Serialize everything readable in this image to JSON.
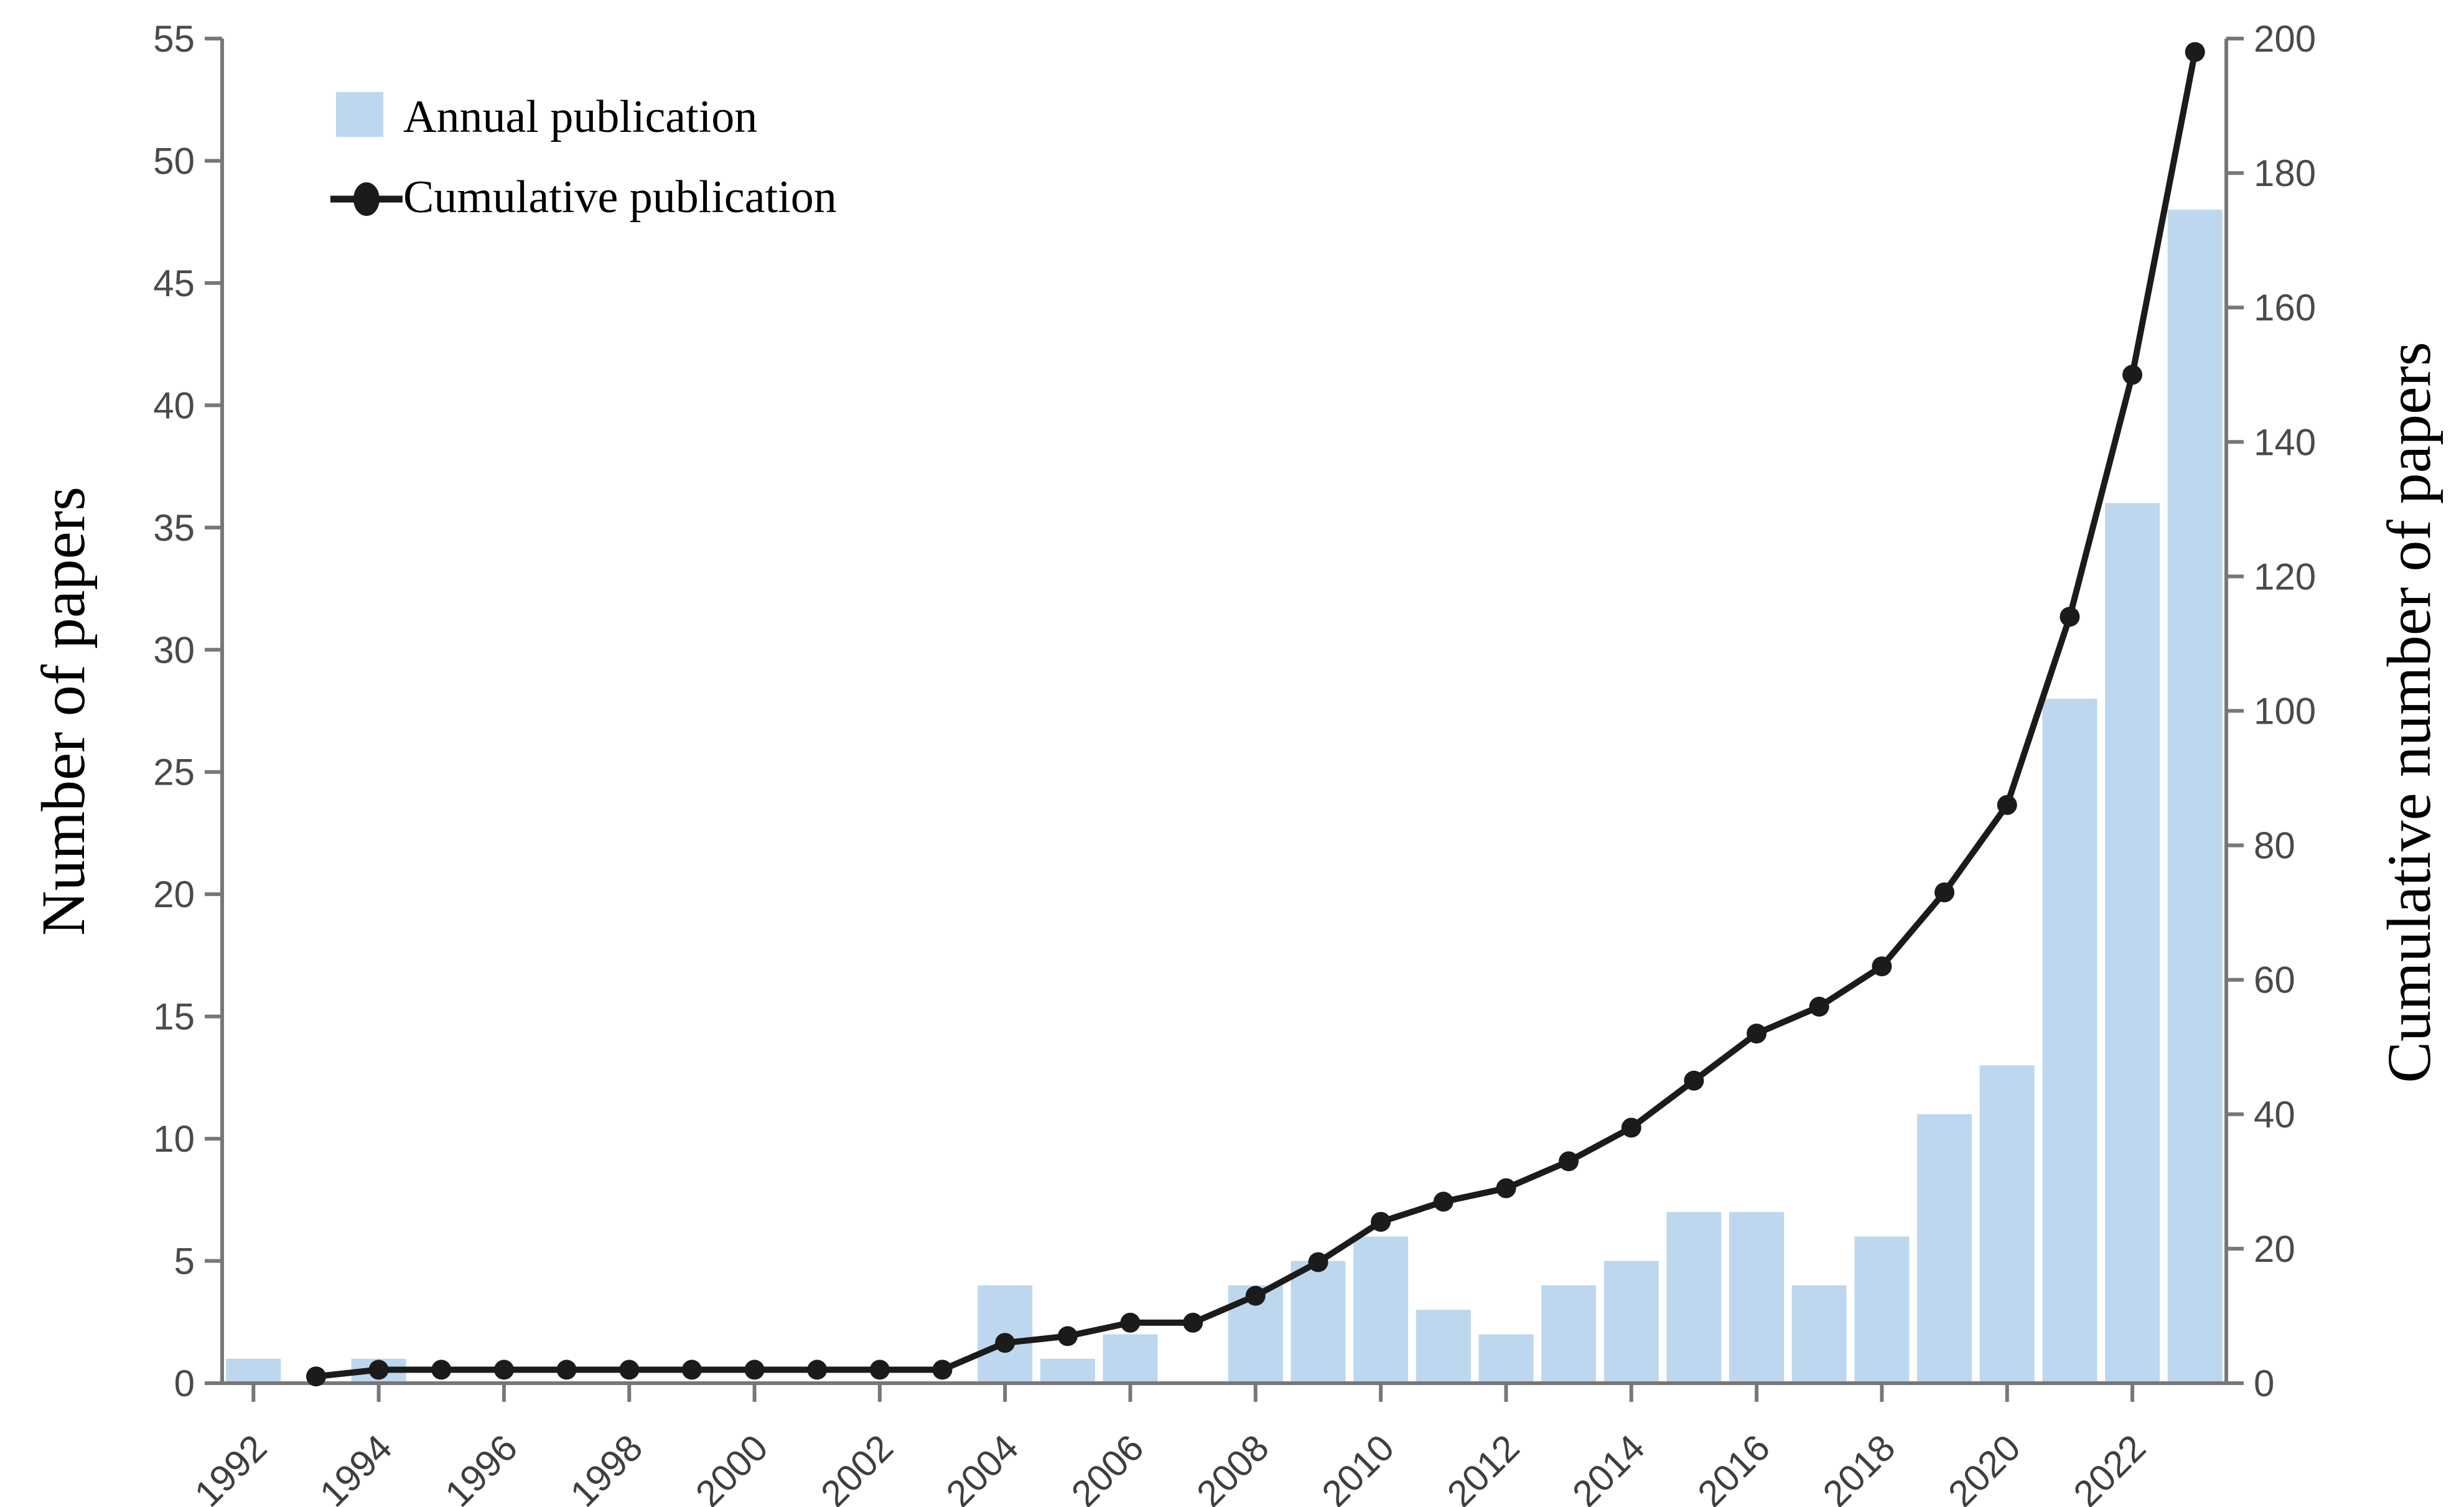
{
  "chart_data": {
    "type": "bar+line",
    "title": "",
    "categories": [
      1992,
      1993,
      1994,
      1995,
      1996,
      1997,
      1998,
      1999,
      2000,
      2001,
      2002,
      2003,
      2004,
      2005,
      2006,
      2007,
      2008,
      2009,
      2010,
      2011,
      2012,
      2013,
      2014,
      2015,
      2016,
      2017,
      2018,
      2019,
      2020,
      2021,
      2022,
      2023
    ],
    "series": [
      {
        "name": "Annual publication",
        "type": "bar",
        "axis": "left",
        "values": [
          1,
          0,
          1,
          0,
          0,
          0,
          0,
          0,
          0,
          0,
          0,
          0,
          4,
          1,
          2,
          0,
          4,
          5,
          6,
          3,
          2,
          4,
          5,
          7,
          7,
          4,
          6,
          11,
          13,
          28,
          36,
          48
        ]
      },
      {
        "name": "Cumulative publication",
        "type": "line",
        "axis": "right",
        "start_year": 1993,
        "values": [
          1,
          2,
          2,
          2,
          2,
          2,
          2,
          2,
          2,
          2,
          2,
          6,
          7,
          9,
          9,
          13,
          18,
          24,
          27,
          29,
          33,
          38,
          45,
          52,
          56,
          62,
          73,
          86,
          114,
          150,
          198
        ]
      }
    ],
    "left_axis": {
      "label": "Number of papers",
      "min": 0,
      "max": 55,
      "tick_step": 5,
      "ticks": [
        0,
        5,
        10,
        15,
        20,
        25,
        30,
        35,
        40,
        45,
        50,
        55
      ]
    },
    "right_axis": {
      "label": "Cumulative number of papers",
      "min": 0,
      "max": 200,
      "tick_step": 20,
      "ticks": [
        0,
        20,
        40,
        60,
        80,
        100,
        120,
        140,
        160,
        180,
        200
      ]
    },
    "x_axis": {
      "tick_years": [
        1992,
        1994,
        1996,
        1998,
        2000,
        2002,
        2004,
        2006,
        2008,
        2010,
        2012,
        2014,
        2016,
        2018,
        2020,
        2022
      ]
    },
    "legend": [
      {
        "label": "Annual publication",
        "marker": "square"
      },
      {
        "label": "Cumulative publication",
        "marker": "line-dot"
      }
    ],
    "colors": {
      "bar": "#BDD7EE",
      "line": "#1B1B1B",
      "axis": "#777777",
      "tick_label": "#4A4A4A",
      "text": "#000000",
      "background": "#FFFFFF"
    },
    "layout_hints": {
      "legend_position": "top-left",
      "grid": false,
      "x_label_rotation": -45
    }
  }
}
